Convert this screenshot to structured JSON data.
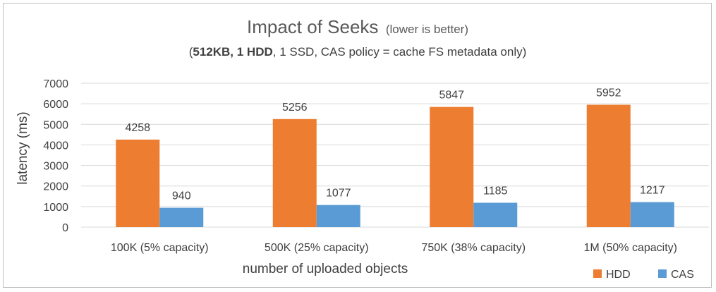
{
  "chart_data": {
    "type": "bar",
    "title": "Impact of Seeks",
    "title_note": "(lower is better)",
    "subtitle_parts": [
      {
        "text": "(",
        "bold": false
      },
      {
        "text": "512KB, 1 HDD",
        "bold": true
      },
      {
        "text": ", 1 SSD, CAS policy = cache FS metadata only)",
        "bold": false
      }
    ],
    "xlabel": "number of uploaded objects",
    "ylabel": "latency (ms)",
    "ylim": [
      0,
      7000
    ],
    "yticks": [
      0,
      1000,
      2000,
      3000,
      4000,
      5000,
      6000,
      7000
    ],
    "grid": true,
    "legend_position": "bottom-right",
    "categories": [
      "100K (5% capacity)",
      "500K (25% capacity)",
      "750K (38% capacity)",
      "1M (50% capacity)"
    ],
    "series": [
      {
        "name": "HDD",
        "color": "#ED7D31",
        "values": [
          4258,
          5256,
          5847,
          5952
        ]
      },
      {
        "name": "CAS",
        "color": "#5B9BD5",
        "values": [
          940,
          1077,
          1185,
          1217
        ]
      }
    ]
  }
}
